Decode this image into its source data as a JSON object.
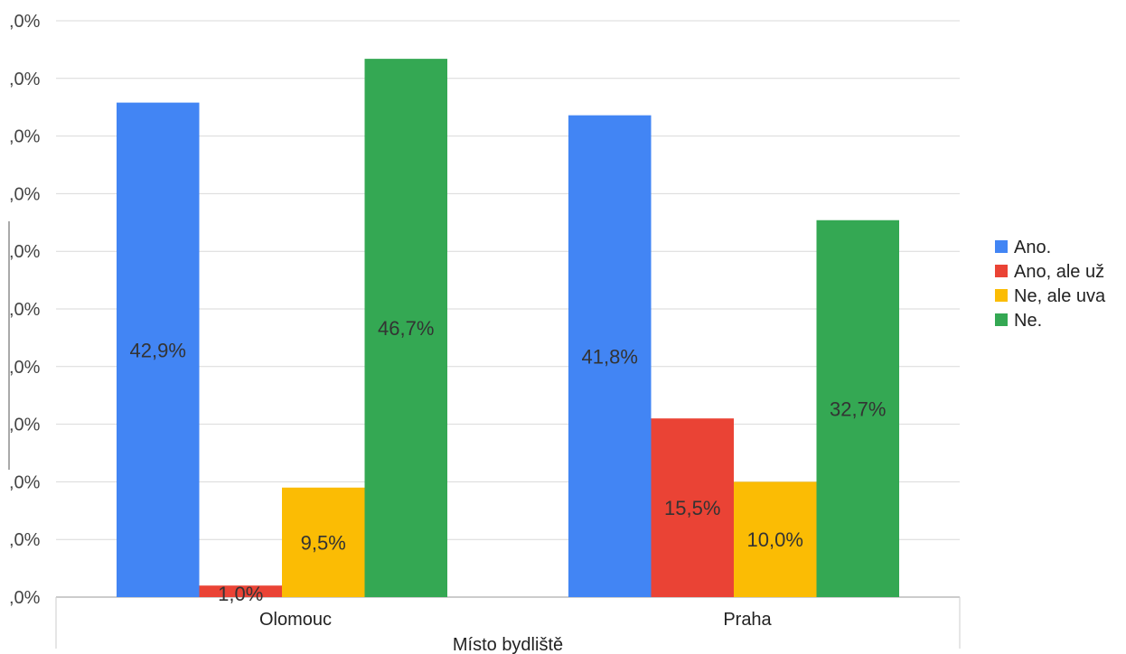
{
  "chart_data": {
    "type": "bar",
    "title": "",
    "xlabel": "Místo bydliště",
    "ylabel": "",
    "ylim": [
      0,
      50
    ],
    "y_ticks": [
      ",0%",
      ",0%",
      ",0%",
      ",0%",
      ",0%",
      ",0%",
      ",0%",
      ",0%",
      ",0%",
      ",0%",
      ",0%"
    ],
    "y_tick_values": [
      0,
      5,
      10,
      15,
      20,
      25,
      30,
      35,
      40,
      45,
      50
    ],
    "grid": true,
    "legend_position": "right",
    "categories": [
      "Olomouc",
      "Praha"
    ],
    "series": [
      {
        "name": "Ano.",
        "color": "#4285f4",
        "values": [
          42.9,
          41.8
        ],
        "labels": [
          "42,9%",
          "41,8%"
        ]
      },
      {
        "name": "Ano, ale už",
        "color": "#ea4335",
        "values": [
          1.0,
          15.5
        ],
        "labels": [
          "1,0%",
          "15,5%"
        ]
      },
      {
        "name": "Ne, ale uva",
        "color": "#fbbc04",
        "values": [
          9.5,
          10.0
        ],
        "labels": [
          "9,5%",
          "10,0%"
        ]
      },
      {
        "name": "Ne.",
        "color": "#34a853",
        "values": [
          46.7,
          32.7
        ],
        "labels": [
          "46,7%",
          "32,7%"
        ]
      }
    ]
  }
}
